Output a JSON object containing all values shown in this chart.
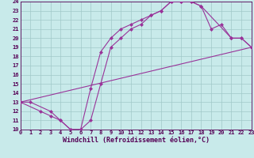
{
  "xlabel": "Windchill (Refroidissement éolien,°C)",
  "background_color": "#c8eaea",
  "grid_color": "#a0c8c8",
  "line_color": "#993399",
  "marker": "D",
  "markersize": 2,
  "linewidth": 0.8,
  "ylim": [
    10,
    24
  ],
  "xlim": [
    0,
    23
  ],
  "yticks": [
    10,
    11,
    12,
    13,
    14,
    15,
    16,
    17,
    18,
    19,
    20,
    21,
    22,
    23,
    24
  ],
  "xticks": [
    0,
    1,
    2,
    3,
    4,
    5,
    6,
    7,
    8,
    9,
    10,
    11,
    12,
    13,
    14,
    15,
    16,
    17,
    18,
    19,
    20,
    21,
    22,
    23
  ],
  "line1_x": [
    0,
    1,
    3,
    4,
    5,
    6,
    7,
    8,
    9,
    10,
    11,
    12,
    13,
    14,
    15,
    16,
    17,
    18,
    21,
    22,
    23
  ],
  "line1_y": [
    13,
    13,
    12,
    11,
    10,
    10,
    14.5,
    18.5,
    20,
    21,
    21.5,
    22,
    22.5,
    23,
    24,
    24,
    24,
    23.5,
    20,
    20,
    19
  ],
  "line2_x": [
    0,
    2,
    3,
    4,
    5,
    6,
    7,
    8,
    9,
    10,
    11,
    12,
    13,
    14,
    15,
    16,
    17,
    18,
    19,
    20,
    21,
    22,
    23
  ],
  "line2_y": [
    13,
    12,
    11.5,
    11,
    10,
    10,
    11,
    15,
    19,
    20,
    21,
    21.5,
    22.5,
    23,
    24,
    24,
    24,
    23.5,
    21,
    21.5,
    20,
    20,
    19
  ],
  "line3_x": [
    0,
    23
  ],
  "line3_y": [
    13,
    19
  ],
  "tick_fontsize": 5,
  "xlabel_fontsize": 6,
  "tick_color": "#550055",
  "label_color": "#550055"
}
